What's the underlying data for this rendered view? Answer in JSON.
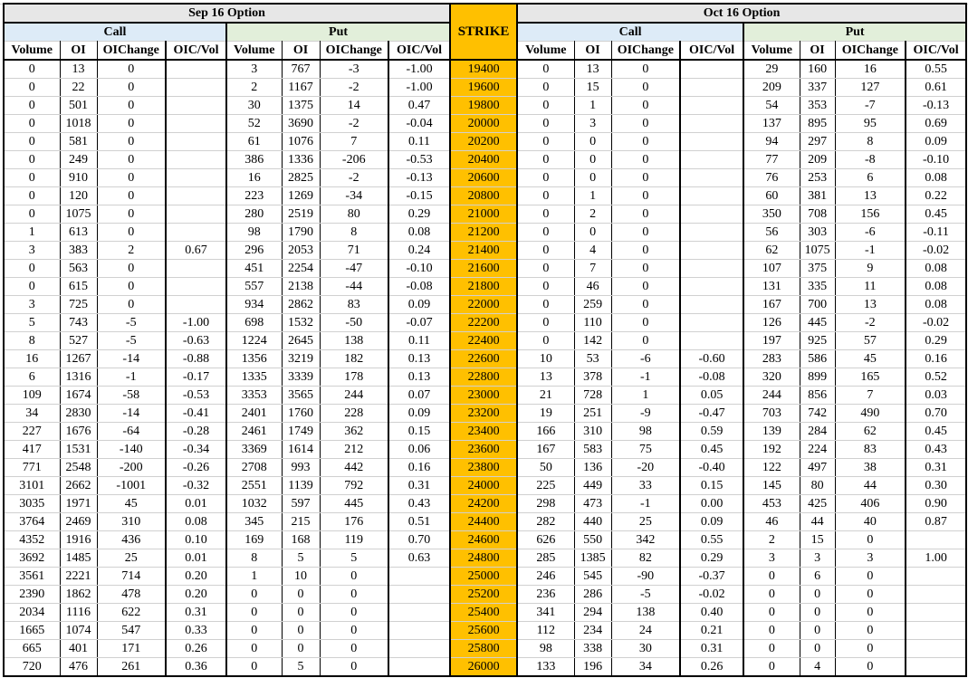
{
  "sections": [
    {
      "title": "Sep 16 Option",
      "call_label": "Call",
      "put_label": "Put"
    },
    {
      "title": "Oct 16 Option",
      "call_label": "Call",
      "put_label": "Put"
    }
  ],
  "strike_label": "STRIKE",
  "column_headers": [
    "Volume",
    "OI",
    "OIChange",
    "OIC/Vol"
  ],
  "colors": {
    "strike_bg": "#ffc000",
    "call_bg": "#ddebf7",
    "put_bg": "#e2efda",
    "title_bg": "#e7e7e7"
  },
  "rows": [
    {
      "strike": "19400",
      "sep_call": [
        "0",
        "13",
        "0",
        ""
      ],
      "sep_put": [
        "3",
        "767",
        "-3",
        "-1.00"
      ],
      "oct_call": [
        "0",
        "13",
        "0",
        ""
      ],
      "oct_put": [
        "29",
        "160",
        "16",
        "0.55"
      ]
    },
    {
      "strike": "19600",
      "sep_call": [
        "0",
        "22",
        "0",
        ""
      ],
      "sep_put": [
        "2",
        "1167",
        "-2",
        "-1.00"
      ],
      "oct_call": [
        "0",
        "15",
        "0",
        ""
      ],
      "oct_put": [
        "209",
        "337",
        "127",
        "0.61"
      ]
    },
    {
      "strike": "19800",
      "sep_call": [
        "0",
        "501",
        "0",
        ""
      ],
      "sep_put": [
        "30",
        "1375",
        "14",
        "0.47"
      ],
      "oct_call": [
        "0",
        "1",
        "0",
        ""
      ],
      "oct_put": [
        "54",
        "353",
        "-7",
        "-0.13"
      ]
    },
    {
      "strike": "20000",
      "sep_call": [
        "0",
        "1018",
        "0",
        ""
      ],
      "sep_put": [
        "52",
        "3690",
        "-2",
        "-0.04"
      ],
      "oct_call": [
        "0",
        "3",
        "0",
        ""
      ],
      "oct_put": [
        "137",
        "895",
        "95",
        "0.69"
      ]
    },
    {
      "strike": "20200",
      "sep_call": [
        "0",
        "581",
        "0",
        ""
      ],
      "sep_put": [
        "61",
        "1076",
        "7",
        "0.11"
      ],
      "oct_call": [
        "0",
        "0",
        "0",
        ""
      ],
      "oct_put": [
        "94",
        "297",
        "8",
        "0.09"
      ]
    },
    {
      "strike": "20400",
      "sep_call": [
        "0",
        "249",
        "0",
        ""
      ],
      "sep_put": [
        "386",
        "1336",
        "-206",
        "-0.53"
      ],
      "oct_call": [
        "0",
        "0",
        "0",
        ""
      ],
      "oct_put": [
        "77",
        "209",
        "-8",
        "-0.10"
      ]
    },
    {
      "strike": "20600",
      "sep_call": [
        "0",
        "910",
        "0",
        ""
      ],
      "sep_put": [
        "16",
        "2825",
        "-2",
        "-0.13"
      ],
      "oct_call": [
        "0",
        "0",
        "0",
        ""
      ],
      "oct_put": [
        "76",
        "253",
        "6",
        "0.08"
      ]
    },
    {
      "strike": "20800",
      "sep_call": [
        "0",
        "120",
        "0",
        ""
      ],
      "sep_put": [
        "223",
        "1269",
        "-34",
        "-0.15"
      ],
      "oct_call": [
        "0",
        "1",
        "0",
        ""
      ],
      "oct_put": [
        "60",
        "381",
        "13",
        "0.22"
      ]
    },
    {
      "strike": "21000",
      "sep_call": [
        "0",
        "1075",
        "0",
        ""
      ],
      "sep_put": [
        "280",
        "2519",
        "80",
        "0.29"
      ],
      "oct_call": [
        "0",
        "2",
        "0",
        ""
      ],
      "oct_put": [
        "350",
        "708",
        "156",
        "0.45"
      ]
    },
    {
      "strike": "21200",
      "sep_call": [
        "1",
        "613",
        "0",
        ""
      ],
      "sep_put": [
        "98",
        "1790",
        "8",
        "0.08"
      ],
      "oct_call": [
        "0",
        "0",
        "0",
        ""
      ],
      "oct_put": [
        "56",
        "303",
        "-6",
        "-0.11"
      ]
    },
    {
      "strike": "21400",
      "sep_call": [
        "3",
        "383",
        "2",
        "0.67"
      ],
      "sep_put": [
        "296",
        "2053",
        "71",
        "0.24"
      ],
      "oct_call": [
        "0",
        "4",
        "0",
        ""
      ],
      "oct_put": [
        "62",
        "1075",
        "-1",
        "-0.02"
      ]
    },
    {
      "strike": "21600",
      "sep_call": [
        "0",
        "563",
        "0",
        ""
      ],
      "sep_put": [
        "451",
        "2254",
        "-47",
        "-0.10"
      ],
      "oct_call": [
        "0",
        "7",
        "0",
        ""
      ],
      "oct_put": [
        "107",
        "375",
        "9",
        "0.08"
      ]
    },
    {
      "strike": "21800",
      "sep_call": [
        "0",
        "615",
        "0",
        ""
      ],
      "sep_put": [
        "557",
        "2138",
        "-44",
        "-0.08"
      ],
      "oct_call": [
        "0",
        "46",
        "0",
        ""
      ],
      "oct_put": [
        "131",
        "335",
        "11",
        "0.08"
      ]
    },
    {
      "strike": "22000",
      "sep_call": [
        "3",
        "725",
        "0",
        ""
      ],
      "sep_put": [
        "934",
        "2862",
        "83",
        "0.09"
      ],
      "oct_call": [
        "0",
        "259",
        "0",
        ""
      ],
      "oct_put": [
        "167",
        "700",
        "13",
        "0.08"
      ]
    },
    {
      "strike": "22200",
      "sep_call": [
        "5",
        "743",
        "-5",
        "-1.00"
      ],
      "sep_put": [
        "698",
        "1532",
        "-50",
        "-0.07"
      ],
      "oct_call": [
        "0",
        "110",
        "0",
        ""
      ],
      "oct_put": [
        "126",
        "445",
        "-2",
        "-0.02"
      ]
    },
    {
      "strike": "22400",
      "sep_call": [
        "8",
        "527",
        "-5",
        "-0.63"
      ],
      "sep_put": [
        "1224",
        "2645",
        "138",
        "0.11"
      ],
      "oct_call": [
        "0",
        "142",
        "0",
        ""
      ],
      "oct_put": [
        "197",
        "925",
        "57",
        "0.29"
      ]
    },
    {
      "strike": "22600",
      "sep_call": [
        "16",
        "1267",
        "-14",
        "-0.88"
      ],
      "sep_put": [
        "1356",
        "3219",
        "182",
        "0.13"
      ],
      "oct_call": [
        "10",
        "53",
        "-6",
        "-0.60"
      ],
      "oct_put": [
        "283",
        "586",
        "45",
        "0.16"
      ]
    },
    {
      "strike": "22800",
      "sep_call": [
        "6",
        "1316",
        "-1",
        "-0.17"
      ],
      "sep_put": [
        "1335",
        "3339",
        "178",
        "0.13"
      ],
      "oct_call": [
        "13",
        "378",
        "-1",
        "-0.08"
      ],
      "oct_put": [
        "320",
        "899",
        "165",
        "0.52"
      ]
    },
    {
      "strike": "23000",
      "sep_call": [
        "109",
        "1674",
        "-58",
        "-0.53"
      ],
      "sep_put": [
        "3353",
        "3565",
        "244",
        "0.07"
      ],
      "oct_call": [
        "21",
        "728",
        "1",
        "0.05"
      ],
      "oct_put": [
        "244",
        "856",
        "7",
        "0.03"
      ]
    },
    {
      "strike": "23200",
      "sep_call": [
        "34",
        "2830",
        "-14",
        "-0.41"
      ],
      "sep_put": [
        "2401",
        "1760",
        "228",
        "0.09"
      ],
      "oct_call": [
        "19",
        "251",
        "-9",
        "-0.47"
      ],
      "oct_put": [
        "703",
        "742",
        "490",
        "0.70"
      ]
    },
    {
      "strike": "23400",
      "sep_call": [
        "227",
        "1676",
        "-64",
        "-0.28"
      ],
      "sep_put": [
        "2461",
        "1749",
        "362",
        "0.15"
      ],
      "oct_call": [
        "166",
        "310",
        "98",
        "0.59"
      ],
      "oct_put": [
        "139",
        "284",
        "62",
        "0.45"
      ]
    },
    {
      "strike": "23600",
      "sep_call": [
        "417",
        "1531",
        "-140",
        "-0.34"
      ],
      "sep_put": [
        "3369",
        "1614",
        "212",
        "0.06"
      ],
      "oct_call": [
        "167",
        "583",
        "75",
        "0.45"
      ],
      "oct_put": [
        "192",
        "224",
        "83",
        "0.43"
      ]
    },
    {
      "strike": "23800",
      "sep_call": [
        "771",
        "2548",
        "-200",
        "-0.26"
      ],
      "sep_put": [
        "2708",
        "993",
        "442",
        "0.16"
      ],
      "oct_call": [
        "50",
        "136",
        "-20",
        "-0.40"
      ],
      "oct_put": [
        "122",
        "497",
        "38",
        "0.31"
      ]
    },
    {
      "strike": "24000",
      "sep_call": [
        "3101",
        "2662",
        "-1001",
        "-0.32"
      ],
      "sep_put": [
        "2551",
        "1139",
        "792",
        "0.31"
      ],
      "oct_call": [
        "225",
        "449",
        "33",
        "0.15"
      ],
      "oct_put": [
        "145",
        "80",
        "44",
        "0.30"
      ]
    },
    {
      "strike": "24200",
      "sep_call": [
        "3035",
        "1971",
        "45",
        "0.01"
      ],
      "sep_put": [
        "1032",
        "597",
        "445",
        "0.43"
      ],
      "oct_call": [
        "298",
        "473",
        "-1",
        "0.00"
      ],
      "oct_put": [
        "453",
        "425",
        "406",
        "0.90"
      ]
    },
    {
      "strike": "24400",
      "sep_call": [
        "3764",
        "2469",
        "310",
        "0.08"
      ],
      "sep_put": [
        "345",
        "215",
        "176",
        "0.51"
      ],
      "oct_call": [
        "282",
        "440",
        "25",
        "0.09"
      ],
      "oct_put": [
        "46",
        "44",
        "40",
        "0.87"
      ]
    },
    {
      "strike": "24600",
      "sep_call": [
        "4352",
        "1916",
        "436",
        "0.10"
      ],
      "sep_put": [
        "169",
        "168",
        "119",
        "0.70"
      ],
      "oct_call": [
        "626",
        "550",
        "342",
        "0.55"
      ],
      "oct_put": [
        "2",
        "15",
        "0",
        ""
      ]
    },
    {
      "strike": "24800",
      "sep_call": [
        "3692",
        "1485",
        "25",
        "0.01"
      ],
      "sep_put": [
        "8",
        "5",
        "5",
        "0.63"
      ],
      "oct_call": [
        "285",
        "1385",
        "82",
        "0.29"
      ],
      "oct_put": [
        "3",
        "3",
        "3",
        "1.00"
      ]
    },
    {
      "strike": "25000",
      "sep_call": [
        "3561",
        "2221",
        "714",
        "0.20"
      ],
      "sep_put": [
        "1",
        "10",
        "0",
        ""
      ],
      "oct_call": [
        "246",
        "545",
        "-90",
        "-0.37"
      ],
      "oct_put": [
        "0",
        "6",
        "0",
        ""
      ]
    },
    {
      "strike": "25200",
      "sep_call": [
        "2390",
        "1862",
        "478",
        "0.20"
      ],
      "sep_put": [
        "0",
        "0",
        "0",
        ""
      ],
      "oct_call": [
        "236",
        "286",
        "-5",
        "-0.02"
      ],
      "oct_put": [
        "0",
        "0",
        "0",
        ""
      ]
    },
    {
      "strike": "25400",
      "sep_call": [
        "2034",
        "1116",
        "622",
        "0.31"
      ],
      "sep_put": [
        "0",
        "0",
        "0",
        ""
      ],
      "oct_call": [
        "341",
        "294",
        "138",
        "0.40"
      ],
      "oct_put": [
        "0",
        "0",
        "0",
        ""
      ]
    },
    {
      "strike": "25600",
      "sep_call": [
        "1665",
        "1074",
        "547",
        "0.33"
      ],
      "sep_put": [
        "0",
        "0",
        "0",
        ""
      ],
      "oct_call": [
        "112",
        "234",
        "24",
        "0.21"
      ],
      "oct_put": [
        "0",
        "0",
        "0",
        ""
      ]
    },
    {
      "strike": "25800",
      "sep_call": [
        "665",
        "401",
        "171",
        "0.26"
      ],
      "sep_put": [
        "0",
        "0",
        "0",
        ""
      ],
      "oct_call": [
        "98",
        "338",
        "30",
        "0.31"
      ],
      "oct_put": [
        "0",
        "0",
        "0",
        ""
      ]
    },
    {
      "strike": "26000",
      "sep_call": [
        "720",
        "476",
        "261",
        "0.36"
      ],
      "sep_put": [
        "0",
        "5",
        "0",
        ""
      ],
      "oct_call": [
        "133",
        "196",
        "34",
        "0.26"
      ],
      "oct_put": [
        "0",
        "4",
        "0",
        ""
      ]
    }
  ]
}
